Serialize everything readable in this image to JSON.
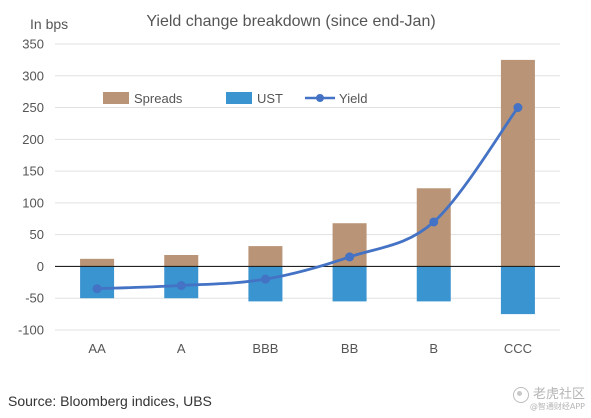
{
  "chart_data": {
    "type": "bar",
    "title": "Yield change breakdown (since end-Jan)",
    "unit_label": "In bps",
    "categories": [
      "AA",
      "A",
      "BBB",
      "BB",
      "B",
      "CCC"
    ],
    "series": [
      {
        "name": "Spreads",
        "kind": "bar",
        "color": "#b99476",
        "values": [
          12,
          18,
          32,
          68,
          123,
          325
        ]
      },
      {
        "name": "UST",
        "kind": "bar",
        "color": "#3a94cf",
        "values": [
          -50,
          -50,
          -55,
          -55,
          -55,
          -75
        ]
      },
      {
        "name": "Yield",
        "kind": "line",
        "color": "#4472c4",
        "values": [
          -35,
          -30,
          -20,
          15,
          70,
          250
        ]
      }
    ],
    "ylim": [
      -100,
      350
    ],
    "yticks": [
      350,
      300,
      250,
      200,
      150,
      100,
      50,
      0,
      -50,
      -100
    ],
    "grid": "horizontal",
    "legend_position": "upper-left"
  },
  "source": "Source: Bloomberg indices, UBS",
  "watermark": {
    "main": "老虎社区",
    "sub": "@智通财经APP"
  }
}
